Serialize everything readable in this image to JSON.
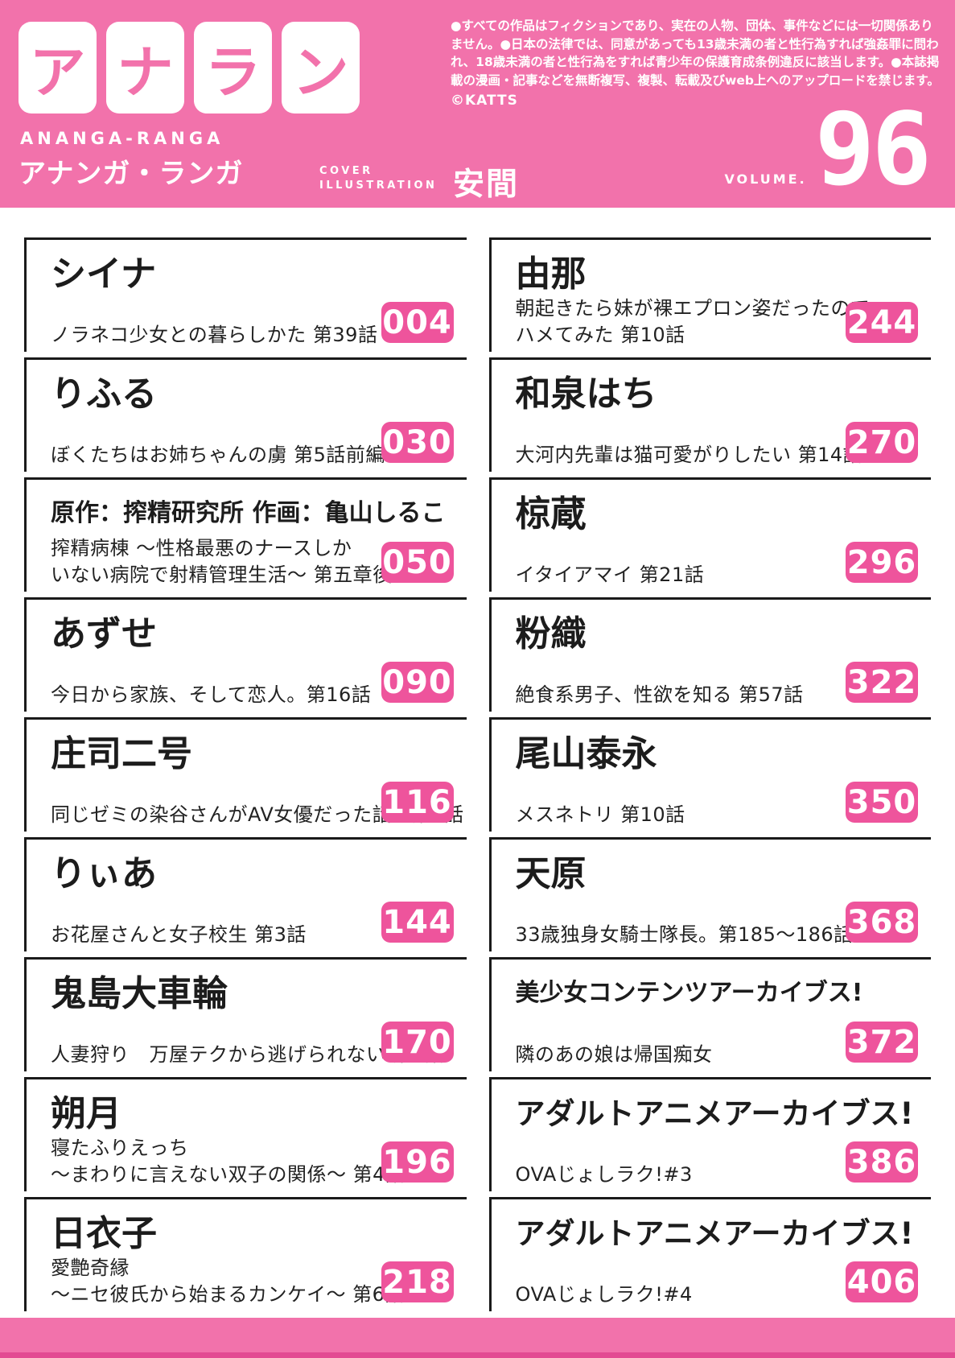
{
  "colors": {
    "pink_background": "#F272AB",
    "badge_pink": "#EE549C",
    "border_black": "#1A1A1A",
    "text_black": "#1C1C1C",
    "white": "#FFFFFF"
  },
  "header": {
    "logo_tiles": [
      "ア",
      "ナ",
      "ラ",
      "ン"
    ],
    "logo_romaji": "ANANGA-RANGA",
    "logo_kana": "アナンガ・ランガ",
    "cover_label_line1": "COVER",
    "cover_label_line2": "ILLUSTRATION",
    "cover_artist": "安間",
    "disclaimer": "●すべての作品はフィクションであり、実在の人物、団体、事件などには一切関係ありません。●日本の法律では、同意があっても13歳未満の者と性行為すれば強姦罪に問われ、18歳未満の者と性行為をすれば青少年の保護育成条例違反に該当します。●本誌掲載の漫画・記事などを無断複写、複製、転載及びweb上へのアップロードを禁じます。",
    "copyright": "©KATTS",
    "volume_label": "VOLUME.",
    "volume_number": "96"
  },
  "toc": {
    "left": [
      {
        "author": "シイナ",
        "title": "ノラネコ少女との暮らしかた 第39話",
        "page": "004"
      },
      {
        "author": "りふる",
        "title": "ぼくたちはお姉ちゃんの虜 第5話前編",
        "page": "030"
      },
      {
        "author": "原作：搾精研究所 作画：亀山しるこ",
        "title": "搾精病棟 〜性格最悪のナースしか\nいない病院で射精管理生活〜 第五章後編",
        "page": "050"
      },
      {
        "author": "あずせ",
        "title": "今日から家族、そして恋人。第16話",
        "page": "090"
      },
      {
        "author": "庄司二号",
        "title": "同じゼミの染谷さんがAV女優だった話。第2話",
        "page": "116"
      },
      {
        "author": "りぃあ",
        "title": "お花屋さんと女子校生 第3話",
        "page": "144"
      },
      {
        "author": "鬼島大車輪",
        "title": "人妻狩り　万屋テクから逃げられない 第3話",
        "page": "170"
      },
      {
        "author": "朔月",
        "title": "寝たふりえっち\n～まわりに言えない双子の関係～ 第4話",
        "page": "196"
      },
      {
        "author": "日衣子",
        "title": "愛艶奇縁\n～ニセ彼氏から始まるカンケイ～ 第6話",
        "page": "218"
      }
    ],
    "right": [
      {
        "author": "由那",
        "title": "朝起きたら妹が裸エプロン姿だったので\nハメてみた 第10話",
        "page": "244"
      },
      {
        "author": "和泉はち",
        "title": "大河内先輩は猫可愛がりしたい 第14話",
        "page": "270"
      },
      {
        "author": "椋蔵",
        "title": "イタイアマイ 第21話",
        "page": "296"
      },
      {
        "author": "粉織",
        "title": "絶食系男子、性欲を知る 第57話",
        "page": "322"
      },
      {
        "author": "尾山泰永",
        "title": "メスネトリ 第10話",
        "page": "350"
      },
      {
        "author": "天原",
        "title": "33歳独身女騎士隊長。第185～186話",
        "page": "368"
      },
      {
        "author": "美少女コンテンツアーカイブス!",
        "title": "隣のあの娘は帰国痴女",
        "page": "372"
      },
      {
        "author": "アダルトアニメアーカイブス!",
        "title": "OVAじょしラク!#3",
        "page": "386"
      },
      {
        "author": "アダルトアニメアーカイブス!",
        "title": "OVAじょしラク!#4",
        "page": "406"
      }
    ]
  }
}
